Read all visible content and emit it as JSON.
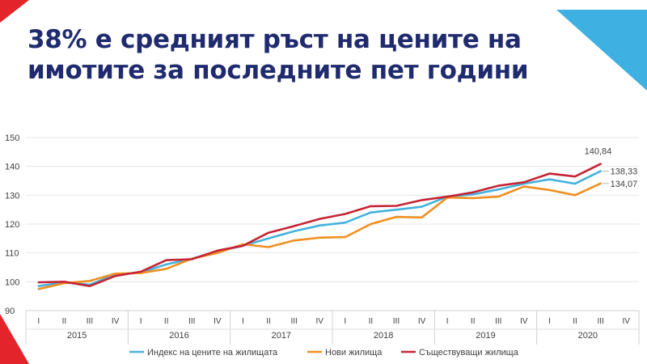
{
  "slide": {
    "title": "38% е средният ръст на цените на имотите за последните пет години"
  },
  "colors": {
    "title": "#1f2b6e",
    "accent_red": "#e3242b",
    "accent_blue": "#3fb0e2",
    "series_index": "#45b1dd",
    "series_new": "#f08f21",
    "series_existing": "#c62435"
  },
  "chart_data": {
    "type": "line",
    "title": "",
    "xlabel": "",
    "ylabel": "",
    "ylim": [
      90,
      150
    ],
    "yticks": [
      90,
      100,
      110,
      120,
      130,
      140,
      150
    ],
    "grid": true,
    "legend_position": "bottom",
    "quarters": [
      "I",
      "II",
      "III",
      "IV",
      "I",
      "II",
      "III",
      "IV",
      "I",
      "II",
      "III",
      "IV",
      "I",
      "II",
      "III",
      "IV",
      "I",
      "II",
      "III",
      "IV",
      "I",
      "II",
      "III",
      "IV"
    ],
    "years": [
      "2015",
      "2016",
      "2017",
      "2018",
      "2019",
      "2020"
    ],
    "series": [
      {
        "name": "Индекс на цените на жилищата",
        "values": [
          98.5,
          99.8,
          99.0,
          102.5,
          103.2,
          106.0,
          108.0,
          110.5,
          112.5,
          115.0,
          117.5,
          119.5,
          120.5,
          124.0,
          125.0,
          126.0,
          129.5,
          130.3,
          132.0,
          134.0,
          135.5,
          134.0,
          138.33,
          null
        ],
        "end_label": "138,33"
      },
      {
        "name": "Нови жилища",
        "values": [
          97.5,
          99.5,
          100.3,
          102.8,
          103.0,
          104.5,
          108.0,
          110.0,
          113.0,
          112.0,
          114.3,
          115.3,
          115.5,
          120.0,
          122.5,
          122.3,
          129.2,
          129.0,
          129.5,
          133.0,
          131.8,
          130.0,
          134.07,
          null
        ],
        "end_label": "134,07"
      },
      {
        "name": "Съществуващи жилища",
        "values": [
          99.8,
          100.0,
          98.5,
          102.0,
          103.5,
          107.5,
          107.8,
          110.8,
          112.5,
          117.0,
          119.3,
          121.8,
          123.5,
          126.2,
          126.3,
          128.3,
          129.5,
          131.0,
          133.3,
          134.5,
          137.5,
          136.5,
          140.84,
          null
        ],
        "end_label": "140,84"
      }
    ]
  }
}
